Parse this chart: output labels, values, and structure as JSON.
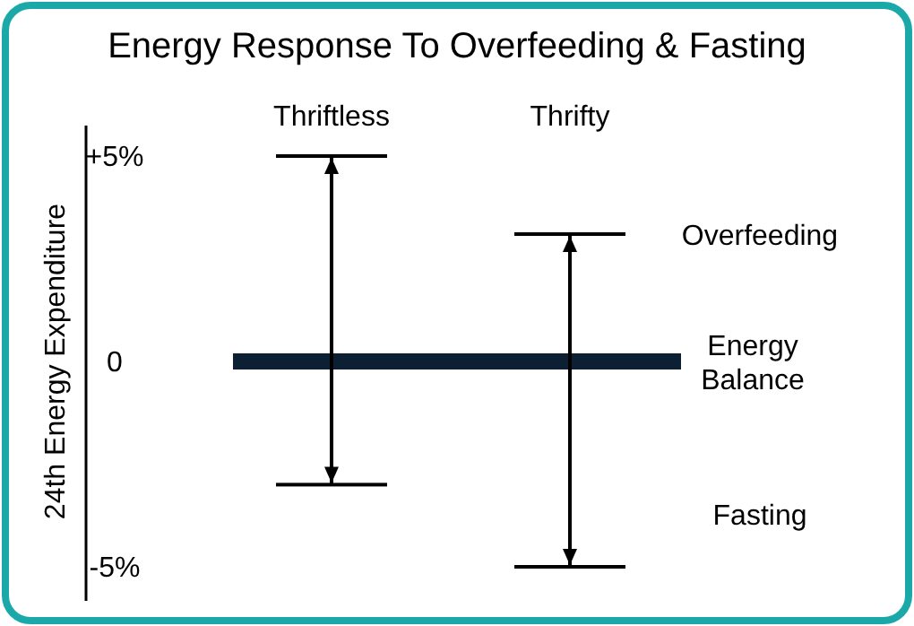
{
  "chart_data": {
    "type": "bar",
    "title": "Energy Response To Overfeeding & Fasting",
    "ylabel": "24th Energy Expenditure",
    "categories": [
      "Thriftless",
      "Thrifty"
    ],
    "values": [
      8,
      8.1
    ],
    "base": [
      -3,
      -5
    ],
    "color": "#000000",
    "ylim": [
      -5,
      5
    ],
    "yticks": [
      {
        "value": 5,
        "label": "+5%"
      },
      0,
      {
        "value": -5,
        "label": "-5%"
      }
    ],
    "ref_lines": [
      {
        "axis": "y",
        "value": 0,
        "label": "Energy Balance",
        "color": "#0d1f33"
      }
    ],
    "annotations": [
      "Overfeeding",
      "Fasting"
    ]
  }
}
